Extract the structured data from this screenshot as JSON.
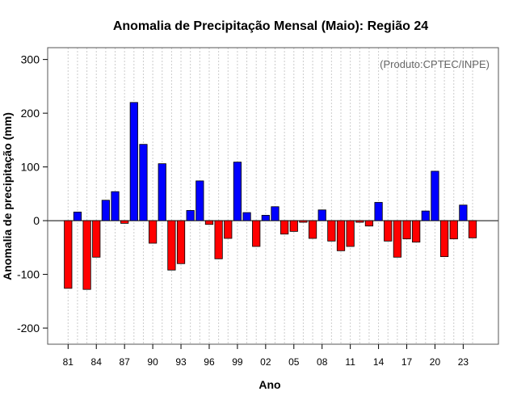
{
  "chart_data": {
    "type": "bar",
    "title": "Anomalia de Precipitação Mensal (Maio): Região 24",
    "xlabel": "Ano",
    "ylabel": "Anomalia de precipitação (mm)",
    "credit": "(Produto:CPTEC/INPE)",
    "ylim": [
      -230,
      322
    ],
    "yticks": [
      -200,
      -100,
      0,
      100,
      200,
      300
    ],
    "tick_labels": [
      "81",
      "84",
      "87",
      "90",
      "93",
      "96",
      "99",
      "02",
      "05",
      "08",
      "11",
      "14",
      "17",
      "20",
      "23"
    ],
    "categories": [
      "1981",
      "1982",
      "1983",
      "1984",
      "1985",
      "1986",
      "1987",
      "1988",
      "1989",
      "1990",
      "1991",
      "1992",
      "1993",
      "1994",
      "1995",
      "1996",
      "1997",
      "1998",
      "1999",
      "2000",
      "2001",
      "2002",
      "2003",
      "2004",
      "2005",
      "2006",
      "2007",
      "2008",
      "2009",
      "2010",
      "2011",
      "2012",
      "2013",
      "2014",
      "2015",
      "2016",
      "2017",
      "2018",
      "2019",
      "2020",
      "2021",
      "2022",
      "2023",
      "2024"
    ],
    "values": [
      -126,
      16,
      -128,
      -68,
      38,
      54,
      -5,
      220,
      142,
      -42,
      106,
      -92,
      -80,
      19,
      74,
      -7,
      -71,
      -33,
      109,
      15,
      -48,
      10,
      26,
      -25,
      -20,
      -3,
      -33,
      20,
      -38,
      -56,
      -48,
      -3,
      -10,
      34,
      -38,
      -68,
      -34,
      -40,
      18,
      92,
      -67,
      -34,
      29,
      -32
    ],
    "colors": {
      "positive": "#0000ff",
      "negative": "#ff0000",
      "grid": "#cccccc",
      "frame": "#555555"
    }
  }
}
